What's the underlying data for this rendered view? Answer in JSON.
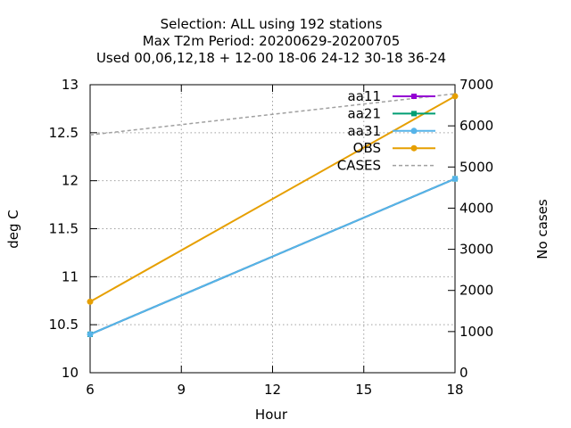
{
  "chart_data": {
    "type": "line",
    "title_lines": [
      "Selection: ALL using   192 stations",
      "Max T2m   Period: 20200629-20200705",
      "Used  00,06,12,18 + 12-00 18-06 24-12 30-18 36-24"
    ],
    "xlabel": "Hour",
    "ylabel": "deg C",
    "y2label": "No cases",
    "x_ticks": [
      6,
      9,
      12,
      15,
      18
    ],
    "y_ticks": [
      10,
      10.5,
      11,
      11.5,
      12,
      12.5,
      13
    ],
    "y2_ticks": [
      0,
      1000,
      2000,
      3000,
      4000,
      5000,
      6000,
      7000
    ],
    "xlim": [
      6,
      18
    ],
    "ylim": [
      10,
      13
    ],
    "y2lim": [
      0,
      7000
    ],
    "grid": true,
    "legend_position": "top-right",
    "series": [
      {
        "name": "aa11",
        "axis": "y",
        "color": "#9400d3",
        "marker": "square",
        "x": [
          6,
          18
        ],
        "values": [
          10.4,
          12.02
        ]
      },
      {
        "name": "aa21",
        "axis": "y",
        "color": "#009e73",
        "marker": "square",
        "x": [
          6,
          18
        ],
        "values": [
          10.4,
          12.02
        ]
      },
      {
        "name": "aa31",
        "axis": "y",
        "color": "#56b4e9",
        "marker": "circle",
        "x": [
          6,
          18
        ],
        "values": [
          10.4,
          12.02
        ]
      },
      {
        "name": "OBS",
        "axis": "y",
        "color": "#e69f00",
        "marker": "circle",
        "x": [
          6,
          18
        ],
        "values": [
          10.74,
          12.88
        ]
      },
      {
        "name": "CASES",
        "axis": "y2",
        "color": "#a0a0a0",
        "dashed": true,
        "marker": "none",
        "x": [
          6,
          18
        ],
        "values": [
          5780,
          6780
        ]
      }
    ]
  }
}
